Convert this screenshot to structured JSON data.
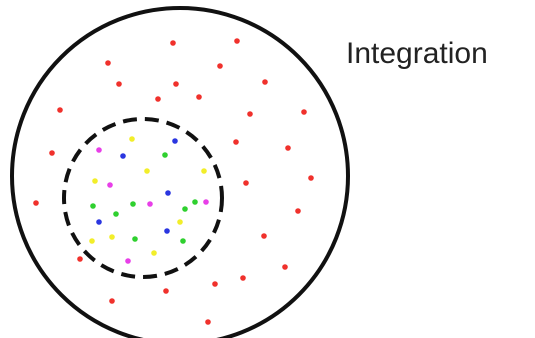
{
  "label": "Integration",
  "colors": {
    "outline": "#111111",
    "background": "#ffffff",
    "label": "#222222",
    "dot_red": "#f0312c",
    "dot_yellow": "#f2ee2a",
    "dot_blue": "#2a36e0",
    "dot_green": "#2fd02f",
    "dot_magenta": "#e83fe8"
  },
  "outer_circle": {
    "border": "solid",
    "dot_color": "red"
  },
  "inner_circle": {
    "border": "dashed",
    "dot_colors": [
      "yellow",
      "blue",
      "green",
      "magenta"
    ]
  }
}
